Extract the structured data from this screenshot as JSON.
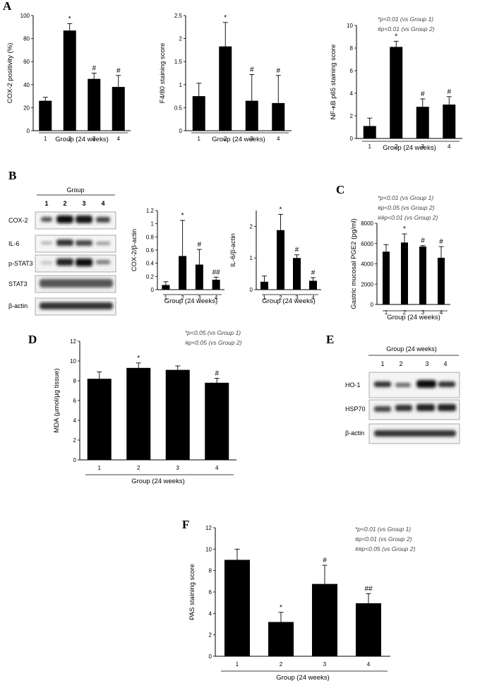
{
  "panel_letters": [
    "A",
    "B",
    "C",
    "D",
    "E",
    "F"
  ],
  "chart_data": [
    {
      "id": "cox2",
      "panel": "A",
      "type": "bar",
      "categories": [
        "1",
        "2",
        "3",
        "4"
      ],
      "values": [
        26,
        87,
        45,
        38
      ],
      "errors": [
        3,
        6,
        5,
        10
      ],
      "marks": [
        "",
        "*",
        "#",
        "#"
      ],
      "ylabel": "COX-2 positivity (%)",
      "xlabel": "Group (24 weeks)",
      "ylim": [
        0,
        100
      ],
      "yticks": [
        0,
        20,
        40,
        60,
        80,
        100
      ],
      "notes": []
    },
    {
      "id": "f480",
      "panel": "A",
      "type": "bar",
      "categories": [
        "1",
        "2",
        "3",
        "4"
      ],
      "values": [
        0.75,
        1.83,
        0.65,
        0.6
      ],
      "errors": [
        0.28,
        0.52,
        0.57,
        0.6
      ],
      "marks": [
        "",
        "*",
        "#",
        "#"
      ],
      "ylabel": "F4/80 staining score",
      "xlabel": "Group (24 weeks)",
      "ylim": [
        0,
        2.5
      ],
      "yticks": [
        "0",
        "0.5",
        "1",
        "1.5",
        "2",
        "2.5"
      ],
      "notes": []
    },
    {
      "id": "nfkb",
      "panel": "A",
      "type": "bar",
      "categories": [
        "1",
        "2",
        "3",
        "4"
      ],
      "values": [
        1.1,
        8.1,
        2.8,
        3.0
      ],
      "errors": [
        0.7,
        0.5,
        0.7,
        0.7
      ],
      "marks": [
        "",
        "*",
        "#",
        "#"
      ],
      "ylabel": "NF-κB p65 staining score",
      "xlabel": "Group (24 weeks)",
      "ylim": [
        0,
        10
      ],
      "yticks": [
        0,
        2,
        4,
        6,
        8,
        10
      ],
      "notes": [
        "*p<0.01 (vs Group 1)",
        "#p<0.01 (vs Group 2)"
      ]
    },
    {
      "id": "cox2actin",
      "panel": "B",
      "type": "bar",
      "categories": [
        "1",
        "2",
        "3",
        "4"
      ],
      "values": [
        0.07,
        0.51,
        0.38,
        0.15
      ],
      "errors": [
        0.05,
        0.54,
        0.23,
        0.04
      ],
      "marks": [
        "",
        "*",
        "#",
        "##"
      ],
      "ylabel": "COX-2/β-actin",
      "xlabel": "Group (24 weeks)",
      "ylim": [
        0,
        1.2
      ],
      "yticks": [
        "0",
        "0.2",
        "0.4",
        "0.6",
        "0.8",
        "1",
        "1.2"
      ],
      "notes": []
    },
    {
      "id": "il6actin",
      "panel": "B",
      "type": "bar",
      "categories": [
        "1",
        "2",
        "3",
        "4"
      ],
      "values": [
        0.25,
        1.88,
        1.0,
        0.28
      ],
      "errors": [
        0.18,
        0.5,
        0.1,
        0.1
      ],
      "marks": [
        "",
        "*",
        "#",
        "#"
      ],
      "ylabel": "IL-6/β-actin",
      "xlabel": "Group (24 weeks)",
      "ylim": [
        0,
        2.5
      ],
      "yticks": [
        0,
        1,
        2
      ],
      "notes": []
    },
    {
      "id": "pge2",
      "panel": "C",
      "type": "bar",
      "categories": [
        "1",
        "2",
        "3",
        "4"
      ],
      "values": [
        5200,
        6100,
        5700,
        4600
      ],
      "errors": [
        700,
        850,
        100,
        1100
      ],
      "marks": [
        "",
        "*",
        "#",
        "#"
      ],
      "ylabel": "Gastric mucosal PGE2 (pg/ml)",
      "xlabel": "Group (24 weeks)",
      "ylim": [
        0,
        8000
      ],
      "yticks": [
        0,
        2000,
        4000,
        6000,
        8000
      ],
      "notes": [
        "*p<0.01 (vs Group  1)",
        "#p<0.05 (vs Group 2)",
        "##p<0.01 (vs Group 2)"
      ]
    },
    {
      "id": "mda",
      "panel": "D",
      "type": "bar",
      "categories": [
        "1",
        "2",
        "3",
        "4"
      ],
      "values": [
        8.2,
        9.3,
        9.1,
        7.8
      ],
      "errors": [
        0.7,
        0.5,
        0.4,
        0.45
      ],
      "marks": [
        "",
        "*",
        "",
        "#"
      ],
      "ylabel": "MDA (μmol/μg tissue)",
      "xlabel": "Group (24 weeks)",
      "ylim": [
        0,
        12
      ],
      "yticks": [
        0,
        2,
        4,
        6,
        8,
        10,
        12
      ],
      "notes": [
        "*p<0.05 (vs Group 1)",
        "#p<0.05 (vs Group 2)"
      ]
    },
    {
      "id": "pas",
      "panel": "F",
      "type": "bar",
      "categories": [
        "1",
        "2",
        "3",
        "4"
      ],
      "values": [
        9.0,
        3.2,
        6.75,
        4.95
      ],
      "errors": [
        1.0,
        0.9,
        1.75,
        0.9
      ],
      "marks": [
        "",
        "*",
        "#",
        "##"
      ],
      "ylabel": "PAS staining score",
      "xlabel": "Group (24 weeks)",
      "ylim": [
        0,
        12
      ],
      "yticks": [
        0,
        2,
        4,
        6,
        8,
        10,
        12
      ],
      "notes": [
        "*p<0.01 (vs Group 1)",
        "#p<0.01 (vs Group 2)",
        "##p<0.05 (vs Group 2)"
      ]
    }
  ],
  "blots": {
    "B": {
      "title": "Group",
      "lanes": [
        "1",
        "2",
        "3",
        "4"
      ],
      "rows": [
        "COX-2",
        "IL-6",
        "p-STAT3",
        "STAT3",
        "β-actin"
      ]
    },
    "E": {
      "title": "Group (24 weeks)",
      "lanes": [
        "1",
        "2",
        "3",
        "4"
      ],
      "rows": [
        "HO-1",
        "HSP70",
        "β-actin"
      ]
    }
  }
}
